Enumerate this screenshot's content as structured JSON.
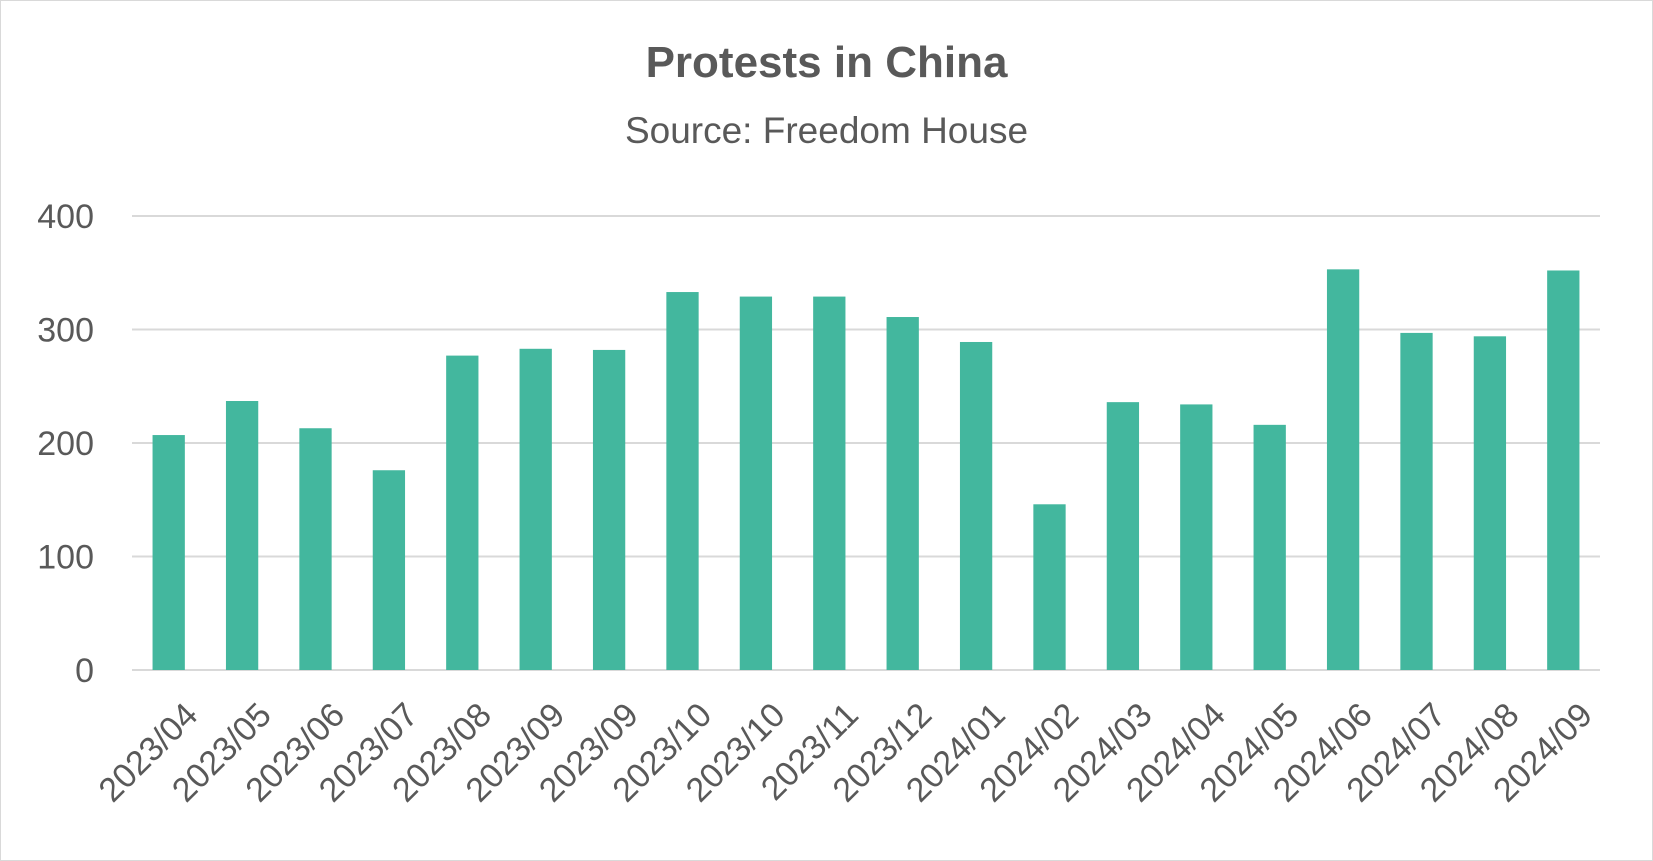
{
  "chart_data": {
    "type": "bar",
    "title": "Protests in China",
    "subtitle": "Source: Freedom House",
    "categories": [
      "2023/04",
      "2023/05",
      "2023/06",
      "2023/07",
      "2023/08",
      "2023/09",
      "2023/09",
      "2023/10",
      "2023/10",
      "2023/11",
      "2023/12",
      "2024/01",
      "2024/02",
      "2024/03",
      "2024/04",
      "2024/05",
      "2024/06",
      "2024/07",
      "2024/08",
      "2024/09"
    ],
    "values": [
      207,
      237,
      213,
      176,
      277,
      283,
      282,
      333,
      329,
      329,
      311,
      289,
      146,
      236,
      234,
      216,
      353,
      297,
      294,
      352
    ],
    "ylim": [
      0,
      400
    ],
    "yticks": [
      0,
      100,
      200,
      300,
      400
    ],
    "grid": true,
    "bar_color": "#43b79e",
    "gridline_color": "#d9d9d9",
    "text_color": "#595959"
  }
}
